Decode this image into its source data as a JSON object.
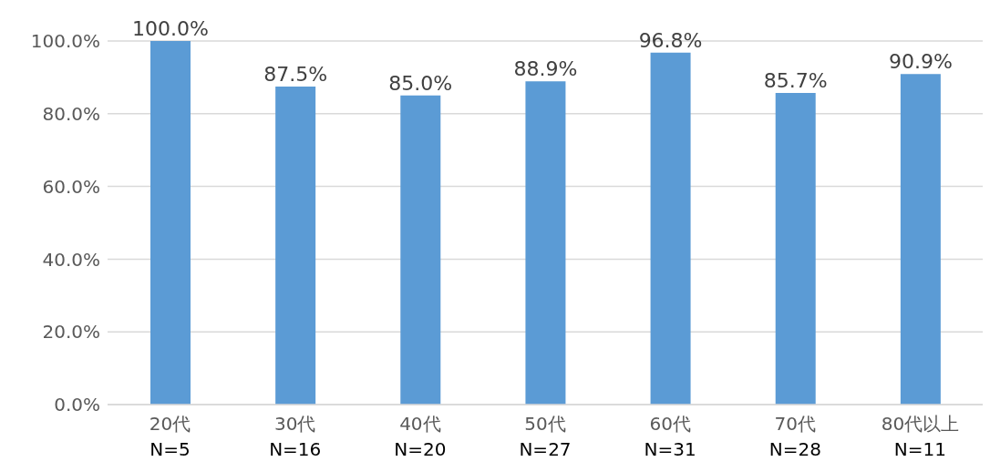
{
  "chart_data": {
    "type": "bar",
    "categories": [
      "20代\nN=5",
      "30代\nN=16",
      "40代\nN=20",
      "50代\nN=27",
      "60代\nN=31",
      "70代\nN=28",
      "80代以上\nN=11"
    ],
    "values": [
      100.0,
      87.5,
      85.0,
      88.9,
      96.8,
      85.7,
      90.9
    ],
    "value_labels": [
      "100.0%",
      "87.5%",
      "85.0%",
      "88.9%",
      "96.8%",
      "85.7%",
      "90.9%"
    ],
    "color": "#5b9bd5",
    "ylim": [
      0,
      100
    ],
    "yticks": [
      {
        "value": 0,
        "label": "0.0%"
      },
      {
        "value": 20,
        "label": "20.0%"
      },
      {
        "value": 40,
        "label": "40.0%"
      },
      {
        "value": 60,
        "label": "60.0%"
      },
      {
        "value": 80,
        "label": "80.0%"
      },
      {
        "value": 100,
        "label": "100.0%"
      }
    ],
    "grid": "y"
  }
}
